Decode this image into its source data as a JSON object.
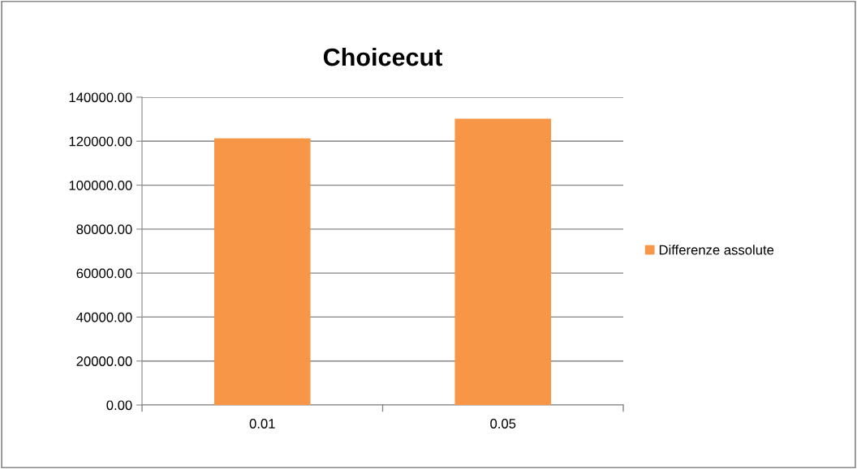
{
  "chart_data": {
    "type": "bar",
    "title": "Choicecut",
    "categories": [
      "0.01",
      "0.05"
    ],
    "series": [
      {
        "name": "Differenze assolute",
        "color": "#f79646",
        "values": [
          121300,
          130200
        ]
      }
    ],
    "ylim": [
      0,
      140000
    ],
    "yticks": [
      {
        "value": 0,
        "label": "0.00"
      },
      {
        "value": 20000,
        "label": "20000.00"
      },
      {
        "value": 40000,
        "label": "40000.00"
      },
      {
        "value": 60000,
        "label": "60000.00"
      },
      {
        "value": 80000,
        "label": "80000.00"
      },
      {
        "value": 100000,
        "label": "100000.00"
      },
      {
        "value": 120000,
        "label": "120000.00"
      },
      {
        "value": 140000,
        "label": "140000.00"
      }
    ],
    "grid": "y",
    "legend": "right"
  }
}
